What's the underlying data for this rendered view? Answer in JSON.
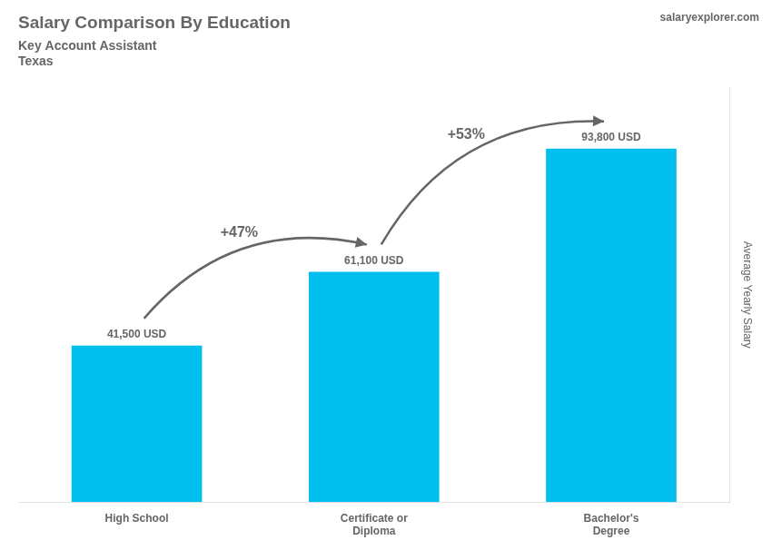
{
  "chart_data": {
    "type": "bar",
    "title": "Salary Comparison By Education",
    "subtitle": "Key Account Assistant",
    "location": "Texas",
    "website": "salaryexplorer.com",
    "ylabel": "Average Yearly Salary",
    "categories": [
      "High School",
      "Certificate or\nDiploma",
      "Bachelor's\nDegree"
    ],
    "values": [
      41500,
      61100,
      93800
    ],
    "value_labels": [
      "41,500 USD",
      "61,100 USD",
      "93,800 USD"
    ],
    "data_labels": true,
    "annotations": [
      "+47%",
      "+53%"
    ],
    "color": "#00bfee",
    "ylim": [
      0,
      110000
    ],
    "grid": false,
    "tick_labels": "x"
  }
}
